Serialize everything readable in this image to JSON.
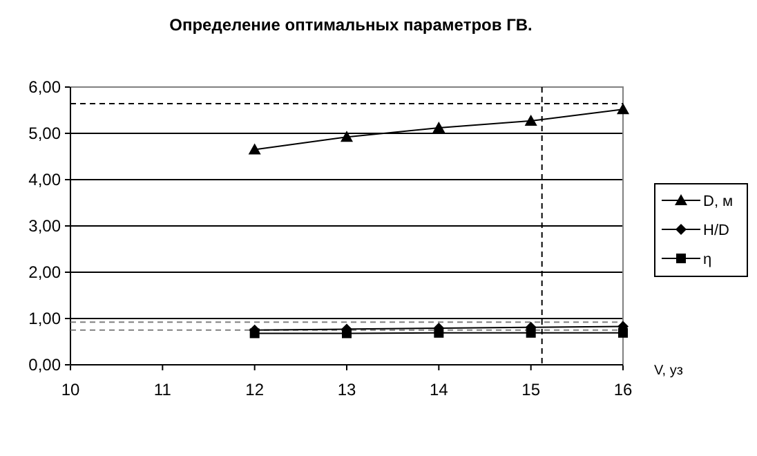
{
  "chart_data": {
    "type": "line",
    "title": "Определение оптимальных параметров ГВ.",
    "xlabel": "V, уз",
    "x": [
      12,
      13,
      14,
      15,
      16
    ],
    "series": [
      {
        "name": "D, м",
        "color": "#000000",
        "marker": "triangle",
        "values": [
          4.65,
          4.92,
          5.12,
          5.27,
          5.52
        ]
      },
      {
        "name": "H/D",
        "color": "#000000",
        "marker": "diamond",
        "values": [
          0.75,
          0.77,
          0.79,
          0.81,
          0.83
        ]
      },
      {
        "name": "η",
        "color": "#000000",
        "marker": "square",
        "values": [
          0.68,
          0.68,
          0.69,
          0.69,
          0.69
        ]
      }
    ],
    "xlim": [
      10,
      16
    ],
    "xticks": [
      10,
      11,
      12,
      13,
      14,
      15,
      16
    ],
    "ylim": [
      0,
      6
    ],
    "yticks": [
      {
        "value": 0,
        "label": "0,00"
      },
      {
        "value": 1,
        "label": "1,00"
      },
      {
        "value": 2,
        "label": "2,00"
      },
      {
        "value": 3,
        "label": "3,00"
      },
      {
        "value": 4,
        "label": "4,00"
      },
      {
        "value": 5,
        "label": "5,00"
      },
      {
        "value": 6,
        "label": "6,00"
      }
    ],
    "grid": "y",
    "legend": "right",
    "ref_lines": [
      {
        "axis": "y",
        "value": 5.64,
        "line_style": "dashed",
        "color": "#000000"
      },
      {
        "axis": "y",
        "value": 0.92,
        "line_style": "dashed",
        "color": "#808080"
      },
      {
        "axis": "y",
        "value": 0.75,
        "line_style": "dashed",
        "color": "#808080"
      },
      {
        "axis": "x",
        "value": 15.12,
        "line_style": "dashed",
        "color": "#000000"
      }
    ]
  }
}
